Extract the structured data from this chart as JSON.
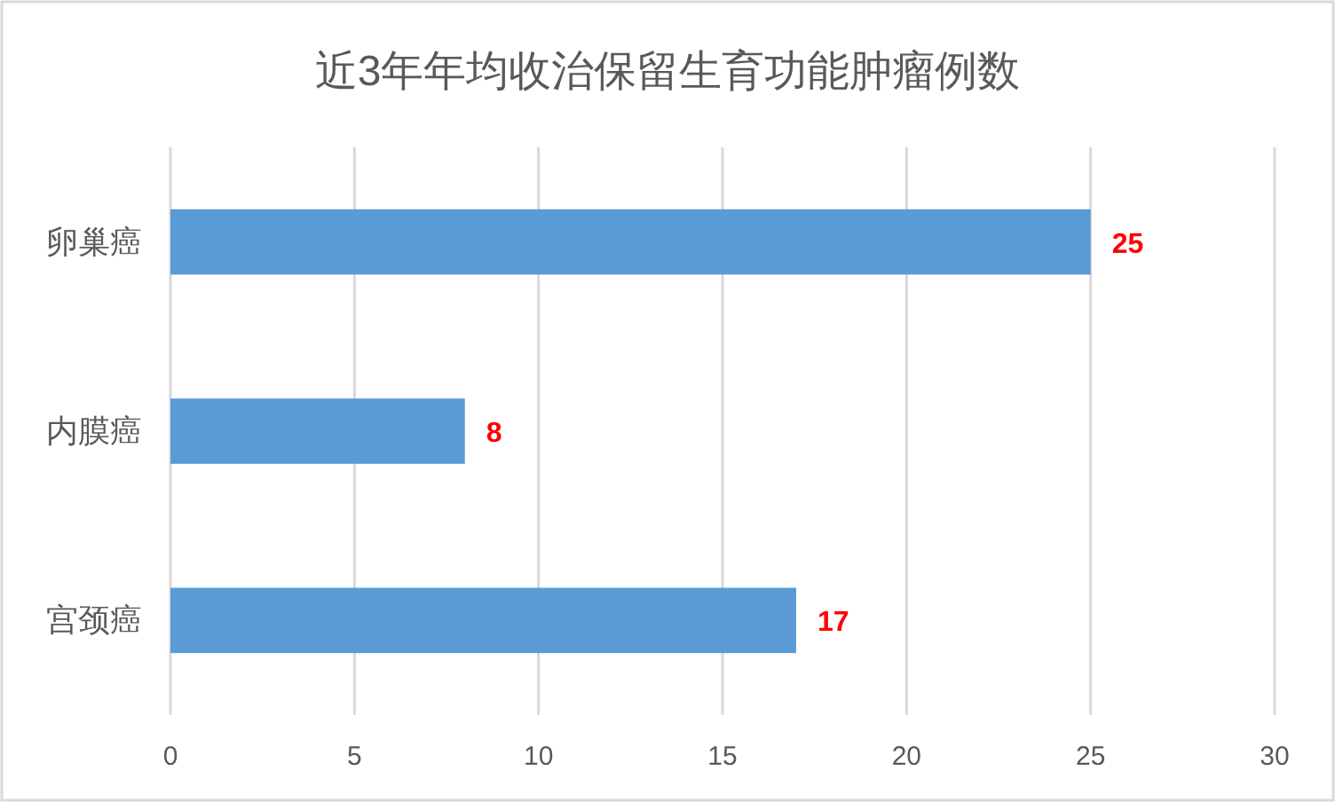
{
  "chart_data": {
    "type": "bar",
    "orientation": "horizontal",
    "title": "近3年年均收治保留生育功能肿瘤例数",
    "categories": [
      "卵巢癌",
      "内膜癌",
      "宫颈癌"
    ],
    "values": [
      25,
      8,
      17
    ],
    "color": "#5b9bd5",
    "xlim": [
      0,
      30
    ],
    "xticks": [
      0,
      5,
      10,
      15,
      20,
      25,
      30
    ],
    "grid": "x",
    "data_labels": true
  }
}
